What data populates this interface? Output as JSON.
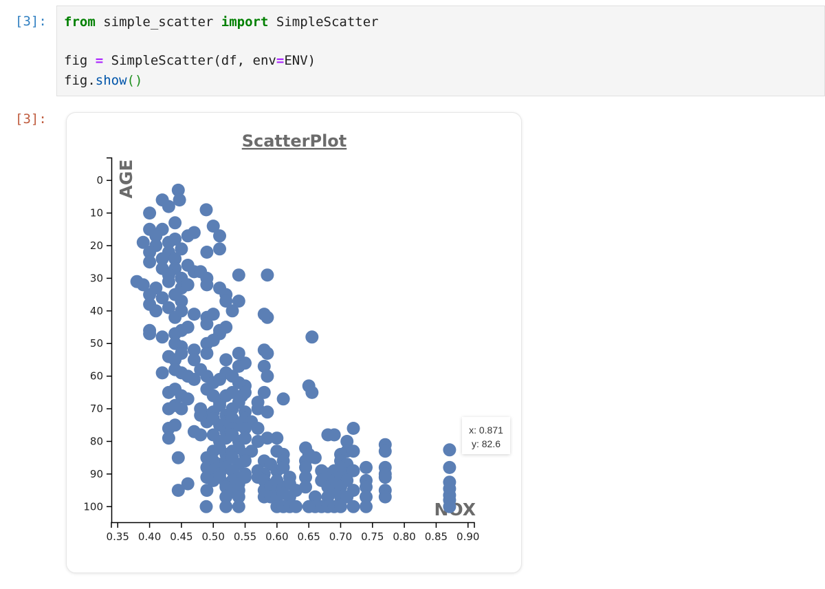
{
  "notebook": {
    "input_prompt": "[3]:",
    "output_prompt": "[3]:",
    "code": {
      "line1": {
        "kw_from": "from",
        "module": " simple_scatter ",
        "kw_import": "import",
        "name": " SimpleScatter"
      },
      "line3": {
        "lhs": "fig ",
        "eq": "=",
        "call": " SimpleScatter(df, env",
        "eq2": "=",
        "arg": "ENV)"
      },
      "line4": {
        "obj": "fig.",
        "method": "show",
        "parens": "()"
      }
    }
  },
  "tooltip": {
    "x_text": "x: 0.871",
    "y_text": "y: 82.6"
  },
  "colors": {
    "point": "#5b7fb5",
    "title": "#6b6b6b",
    "axis": "#000000",
    "prompt_in": "#307fc1",
    "prompt_out": "#bf5b3d"
  },
  "chart_data": {
    "type": "scatter",
    "title": "ScatterPlot",
    "xlabel": "NOX",
    "ylabel": "AGE",
    "xlim": [
      0.34,
      0.91
    ],
    "ylim": [
      -7,
      105
    ],
    "y_inverted": true,
    "x_ticks": [
      "0.35",
      "0.40",
      "0.45",
      "0.50",
      "0.55",
      "0.60",
      "0.65",
      "0.70",
      "0.75",
      "0.80",
      "0.85",
      "0.90"
    ],
    "y_ticks": [
      "0",
      "10",
      "20",
      "30",
      "40",
      "50",
      "60",
      "70",
      "80",
      "90",
      "100"
    ],
    "series": [
      {
        "points": [
          [
            0.445,
            3
          ],
          [
            0.447,
            6
          ],
          [
            0.42,
            6
          ],
          [
            0.4,
            10
          ],
          [
            0.489,
            9
          ],
          [
            0.43,
            8
          ],
          [
            0.44,
            13
          ],
          [
            0.4,
            15
          ],
          [
            0.42,
            15
          ],
          [
            0.41,
            17
          ],
          [
            0.44,
            18
          ],
          [
            0.46,
            17
          ],
          [
            0.47,
            16
          ],
          [
            0.5,
            14
          ],
          [
            0.51,
            17
          ],
          [
            0.39,
            19
          ],
          [
            0.41,
            20
          ],
          [
            0.43,
            19
          ],
          [
            0.45,
            21
          ],
          [
            0.43,
            22
          ],
          [
            0.49,
            22
          ],
          [
            0.51,
            21
          ],
          [
            0.4,
            22
          ],
          [
            0.42,
            24
          ],
          [
            0.44,
            24
          ],
          [
            0.4,
            25
          ],
          [
            0.42,
            27
          ],
          [
            0.44,
            27
          ],
          [
            0.46,
            26
          ],
          [
            0.47,
            28
          ],
          [
            0.48,
            28
          ],
          [
            0.49,
            30
          ],
          [
            0.43,
            29
          ],
          [
            0.45,
            30
          ],
          [
            0.54,
            29
          ],
          [
            0.585,
            29
          ],
          [
            0.38,
            31
          ],
          [
            0.39,
            32
          ],
          [
            0.41,
            33
          ],
          [
            0.43,
            31
          ],
          [
            0.45,
            33
          ],
          [
            0.46,
            32
          ],
          [
            0.49,
            32
          ],
          [
            0.51,
            33
          ],
          [
            0.4,
            35
          ],
          [
            0.42,
            36
          ],
          [
            0.44,
            35
          ],
          [
            0.45,
            37
          ],
          [
            0.52,
            35
          ],
          [
            0.52,
            37
          ],
          [
            0.54,
            37
          ],
          [
            0.4,
            38
          ],
          [
            0.41,
            40
          ],
          [
            0.43,
            39
          ],
          [
            0.44,
            42
          ],
          [
            0.45,
            40
          ],
          [
            0.47,
            41
          ],
          [
            0.49,
            42
          ],
          [
            0.5,
            41
          ],
          [
            0.53,
            40
          ],
          [
            0.49,
            44
          ],
          [
            0.51,
            46
          ],
          [
            0.52,
            45
          ],
          [
            0.585,
            42
          ],
          [
            0.58,
            41
          ],
          [
            0.4,
            46
          ],
          [
            0.4,
            47
          ],
          [
            0.42,
            48
          ],
          [
            0.44,
            47
          ],
          [
            0.45,
            46
          ],
          [
            0.46,
            45
          ],
          [
            0.51,
            47
          ],
          [
            0.655,
            48
          ],
          [
            0.44,
            50
          ],
          [
            0.45,
            51
          ],
          [
            0.49,
            50
          ],
          [
            0.5,
            49
          ],
          [
            0.45,
            53
          ],
          [
            0.47,
            52
          ],
          [
            0.43,
            54
          ],
          [
            0.44,
            55
          ],
          [
            0.47,
            55
          ],
          [
            0.49,
            53
          ],
          [
            0.54,
            53
          ],
          [
            0.58,
            52
          ],
          [
            0.585,
            53
          ],
          [
            0.52,
            55
          ],
          [
            0.55,
            56
          ],
          [
            0.54,
            57
          ],
          [
            0.58,
            57
          ],
          [
            0.42,
            59
          ],
          [
            0.44,
            58
          ],
          [
            0.45,
            59
          ],
          [
            0.46,
            60
          ],
          [
            0.47,
            61
          ],
          [
            0.48,
            58
          ],
          [
            0.49,
            60
          ],
          [
            0.5,
            62
          ],
          [
            0.51,
            61
          ],
          [
            0.52,
            59
          ],
          [
            0.53,
            60
          ],
          [
            0.585,
            60
          ],
          [
            0.54,
            62
          ],
          [
            0.55,
            63
          ],
          [
            0.65,
            63
          ],
          [
            0.43,
            65
          ],
          [
            0.44,
            64
          ],
          [
            0.45,
            66
          ],
          [
            0.46,
            67
          ],
          [
            0.49,
            64
          ],
          [
            0.5,
            66
          ],
          [
            0.51,
            68
          ],
          [
            0.52,
            66
          ],
          [
            0.53,
            65
          ],
          [
            0.545,
            66
          ],
          [
            0.55,
            65
          ],
          [
            0.58,
            65
          ],
          [
            0.655,
            65
          ],
          [
            0.61,
            67
          ],
          [
            0.43,
            70
          ],
          [
            0.44,
            69
          ],
          [
            0.45,
            70
          ],
          [
            0.48,
            70
          ],
          [
            0.49,
            72
          ],
          [
            0.5,
            71
          ],
          [
            0.51,
            69
          ],
          [
            0.52,
            72
          ],
          [
            0.53,
            70
          ],
          [
            0.54,
            68
          ],
          [
            0.55,
            71
          ],
          [
            0.57,
            70
          ],
          [
            0.57,
            68
          ],
          [
            0.585,
            71
          ],
          [
            0.48,
            72
          ],
          [
            0.49,
            74
          ],
          [
            0.5,
            73
          ],
          [
            0.51,
            75
          ],
          [
            0.52,
            74
          ],
          [
            0.53,
            73
          ],
          [
            0.54,
            75
          ],
          [
            0.55,
            73
          ],
          [
            0.56,
            74
          ],
          [
            0.43,
            76
          ],
          [
            0.44,
            75
          ],
          [
            0.47,
            77
          ],
          [
            0.48,
            78
          ],
          [
            0.52,
            77
          ],
          [
            0.53,
            76
          ],
          [
            0.55,
            76
          ],
          [
            0.57,
            76
          ],
          [
            0.72,
            76
          ],
          [
            0.43,
            79
          ],
          [
            0.5,
            78
          ],
          [
            0.51,
            80
          ],
          [
            0.52,
            79
          ],
          [
            0.53,
            78
          ],
          [
            0.54,
            80
          ],
          [
            0.55,
            79
          ],
          [
            0.57,
            80
          ],
          [
            0.585,
            79
          ],
          [
            0.6,
            79
          ],
          [
            0.68,
            78
          ],
          [
            0.69,
            78
          ],
          [
            0.71,
            80
          ],
          [
            0.5,
            83
          ],
          [
            0.51,
            82
          ],
          [
            0.52,
            84
          ],
          [
            0.53,
            83
          ],
          [
            0.54,
            82
          ],
          [
            0.55,
            84
          ],
          [
            0.56,
            83
          ],
          [
            0.6,
            83
          ],
          [
            0.61,
            84
          ],
          [
            0.645,
            82
          ],
          [
            0.65,
            84
          ],
          [
            0.7,
            84
          ],
          [
            0.71,
            83
          ],
          [
            0.72,
            83
          ],
          [
            0.77,
            81
          ],
          [
            0.77,
            83
          ],
          [
            0.871,
            82.6
          ],
          [
            0.445,
            85
          ],
          [
            0.49,
            85
          ],
          [
            0.5,
            86
          ],
          [
            0.51,
            87
          ],
          [
            0.52,
            86
          ],
          [
            0.53,
            85
          ],
          [
            0.54,
            87
          ],
          [
            0.55,
            86
          ],
          [
            0.58,
            86
          ],
          [
            0.59,
            87
          ],
          [
            0.61,
            86
          ],
          [
            0.645,
            86
          ],
          [
            0.66,
            85
          ],
          [
            0.7,
            86
          ],
          [
            0.71,
            87
          ],
          [
            0.49,
            88
          ],
          [
            0.5,
            89
          ],
          [
            0.51,
            90
          ],
          [
            0.52,
            88
          ],
          [
            0.53,
            89
          ],
          [
            0.54,
            91
          ],
          [
            0.55,
            90
          ],
          [
            0.57,
            89
          ],
          [
            0.58,
            90
          ],
          [
            0.6,
            89
          ],
          [
            0.61,
            88
          ],
          [
            0.645,
            88
          ],
          [
            0.67,
            89
          ],
          [
            0.68,
            90
          ],
          [
            0.69,
            89
          ],
          [
            0.7,
            88
          ],
          [
            0.71,
            90
          ],
          [
            0.72,
            89
          ],
          [
            0.74,
            88
          ],
          [
            0.77,
            88
          ],
          [
            0.77,
            90
          ],
          [
            0.871,
            88
          ],
          [
            0.49,
            91
          ],
          [
            0.5,
            92
          ],
          [
            0.51,
            91
          ],
          [
            0.52,
            93
          ],
          [
            0.53,
            92
          ],
          [
            0.54,
            93
          ],
          [
            0.55,
            91
          ],
          [
            0.57,
            91
          ],
          [
            0.58,
            92
          ],
          [
            0.6,
            92
          ],
          [
            0.62,
            91
          ],
          [
            0.645,
            91
          ],
          [
            0.67,
            92
          ],
          [
            0.69,
            92
          ],
          [
            0.7,
            91
          ],
          [
            0.71,
            92
          ],
          [
            0.74,
            92
          ],
          [
            0.77,
            91
          ],
          [
            0.871,
            92.5
          ],
          [
            0.46,
            93
          ],
          [
            0.49,
            95
          ],
          [
            0.52,
            94
          ],
          [
            0.53,
            95
          ],
          [
            0.54,
            95
          ],
          [
            0.58,
            95
          ],
          [
            0.59,
            94
          ],
          [
            0.6,
            95
          ],
          [
            0.61,
            94
          ],
          [
            0.62,
            93
          ],
          [
            0.63,
            95
          ],
          [
            0.645,
            94
          ],
          [
            0.68,
            94
          ],
          [
            0.69,
            95
          ],
          [
            0.7,
            94
          ],
          [
            0.72,
            95
          ],
          [
            0.74,
            94
          ],
          [
            0.77,
            95
          ],
          [
            0.871,
            94.5
          ],
          [
            0.445,
            95
          ],
          [
            0.52,
            97
          ],
          [
            0.54,
            97
          ],
          [
            0.58,
            97
          ],
          [
            0.59,
            97
          ],
          [
            0.6,
            97
          ],
          [
            0.61,
            96
          ],
          [
            0.62,
            97
          ],
          [
            0.66,
            97
          ],
          [
            0.68,
            97
          ],
          [
            0.7,
            97
          ],
          [
            0.71,
            97
          ],
          [
            0.74,
            97
          ],
          [
            0.77,
            97
          ],
          [
            0.871,
            96.5
          ],
          [
            0.489,
            100
          ],
          [
            0.52,
            100
          ],
          [
            0.54,
            100
          ],
          [
            0.6,
            100
          ],
          [
            0.61,
            100
          ],
          [
            0.62,
            100
          ],
          [
            0.63,
            100
          ],
          [
            0.65,
            100
          ],
          [
            0.66,
            100
          ],
          [
            0.67,
            100
          ],
          [
            0.68,
            100
          ],
          [
            0.69,
            100
          ],
          [
            0.7,
            100
          ],
          [
            0.72,
            100
          ],
          [
            0.74,
            100
          ],
          [
            0.871,
            98
          ],
          [
            0.871,
            100
          ]
        ]
      }
    ]
  }
}
